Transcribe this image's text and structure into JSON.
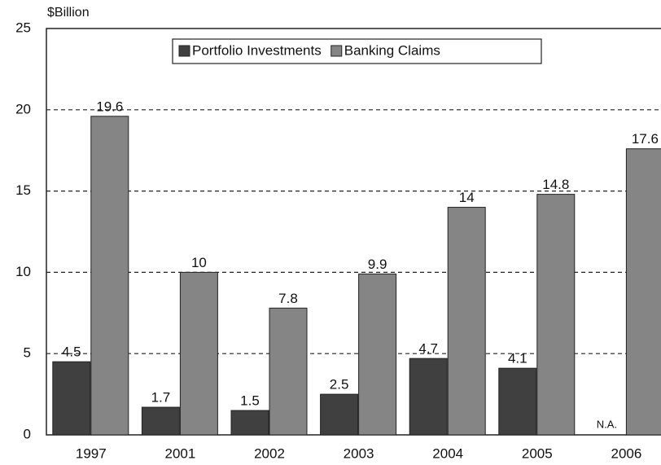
{
  "chart_data": {
    "type": "bar",
    "y_label": "$Billion",
    "categories": [
      "1997",
      "2001",
      "2002",
      "2003",
      "2004",
      "2005",
      "2006"
    ],
    "series": [
      {
        "name": "Portfolio Investments",
        "color": "#404040",
        "values": [
          4.5,
          1.7,
          1.5,
          2.5,
          4.7,
          4.1,
          null
        ],
        "value_labels": [
          "4.5",
          "1.7",
          "1.5",
          "2.5",
          "4.7",
          "4.1",
          "N.A."
        ]
      },
      {
        "name": "Banking Claims",
        "color": "#858585",
        "values": [
          19.6,
          10,
          7.8,
          9.9,
          14,
          14.8,
          17.6
        ]
      }
    ],
    "ylim": [
      0,
      25
    ],
    "yticks": [
      0,
      5,
      10,
      15,
      20,
      25
    ],
    "grid": true,
    "legend": "top"
  }
}
